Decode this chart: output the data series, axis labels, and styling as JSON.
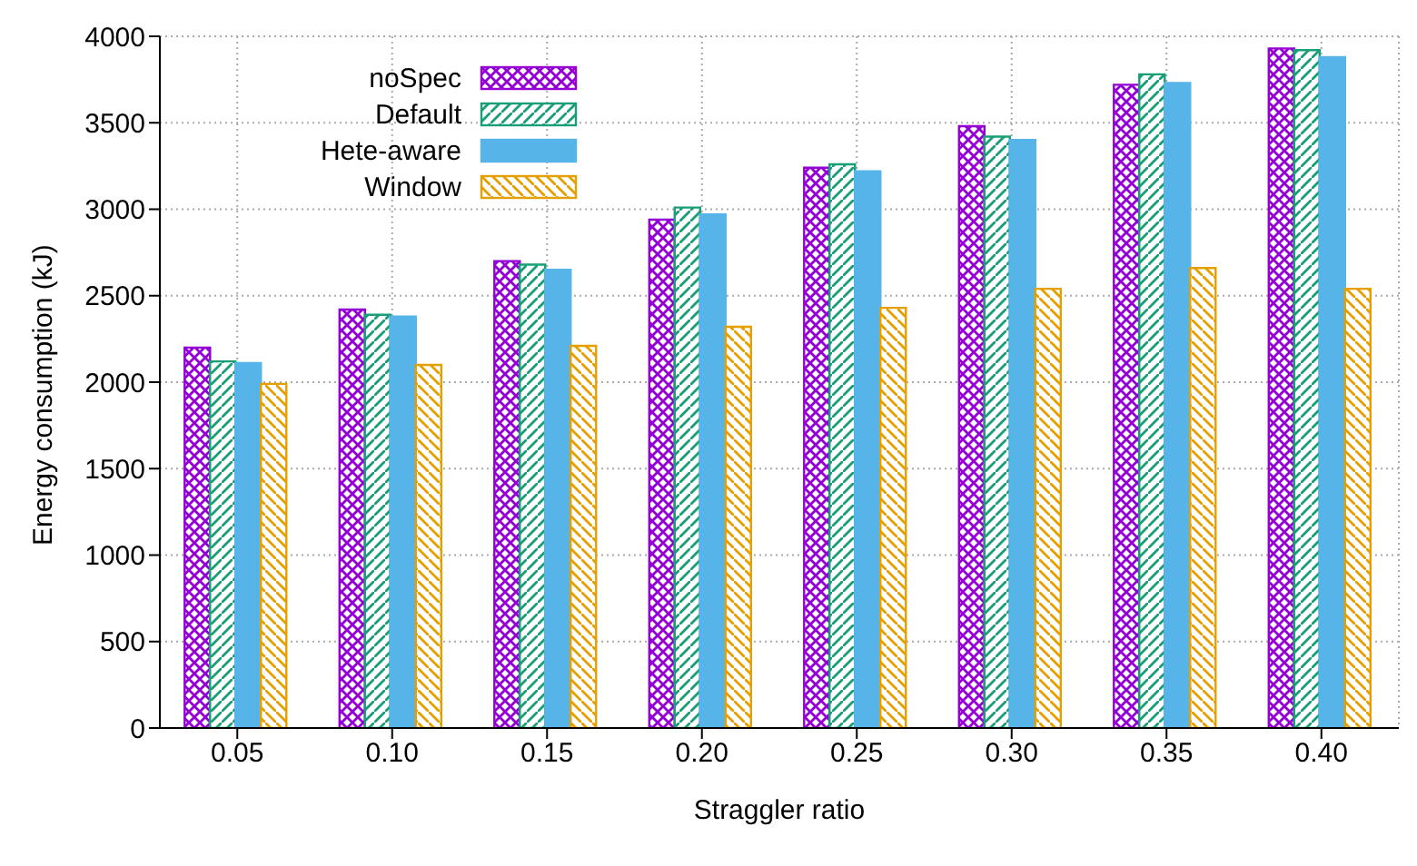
{
  "chart_data": {
    "type": "bar",
    "xlabel": "Straggler ratio",
    "ylabel": "Energy consumption (kJ)",
    "categories": [
      "0.05",
      "0.10",
      "0.15",
      "0.20",
      "0.25",
      "0.30",
      "0.35",
      "0.40"
    ],
    "series": [
      {
        "name": "noSpec",
        "color": "#9400d3",
        "values": [
          2200,
          2420,
          2700,
          2940,
          3240,
          3480,
          3720,
          3930
        ]
      },
      {
        "name": "Default",
        "color": "#1a9e77",
        "values": [
          2120,
          2390,
          2680,
          3010,
          3260,
          3420,
          3780,
          3920
        ]
      },
      {
        "name": "Hete-aware",
        "color": "#56b4e9",
        "values": [
          2110,
          2380,
          2650,
          2970,
          3220,
          3400,
          3730,
          3880
        ]
      },
      {
        "name": "Window",
        "color": "#e69f00",
        "values": [
          1990,
          2100,
          2210,
          2320,
          2430,
          2540,
          2660,
          2540
        ]
      }
    ],
    "ylim": [
      0,
      4000
    ],
    "yticks": [
      0,
      500,
      1000,
      1500,
      2000,
      2500,
      3000,
      3500,
      4000
    ],
    "grid": true,
    "legend": "top left"
  }
}
